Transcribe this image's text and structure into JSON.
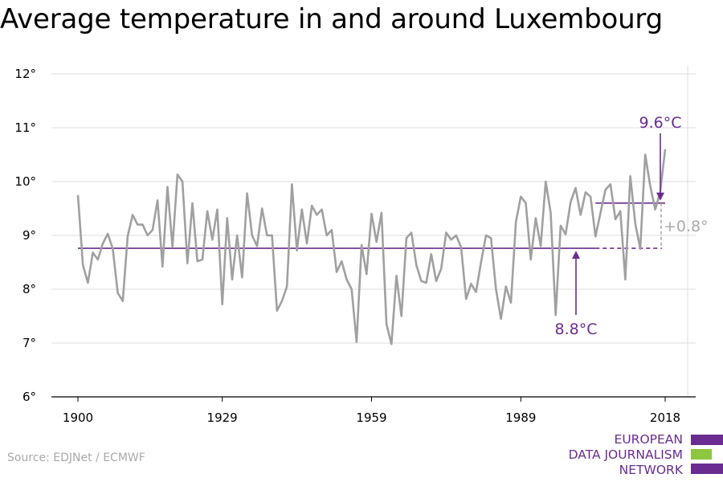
{
  "title": "Average temperature in and around Luxembourg",
  "source": "Source: EDJNet / ECMWF",
  "logo": {
    "line1": "EUROPEAN",
    "line2": "DATA JOURNALISM",
    "line3": "NETWORK"
  },
  "colors": {
    "line": "#a0a0a0",
    "accent": "#6a2c91",
    "accent_green": "#8dc63f",
    "grid": "#dddddd"
  },
  "chart_data": {
    "type": "line",
    "title": "Average temperature in and around Luxembourg",
    "xlabel": "",
    "ylabel": "",
    "xlim": [
      1900,
      2018
    ],
    "ylim": [
      6,
      12
    ],
    "x_ticks": [
      1900,
      1929,
      1959,
      1989,
      2018
    ],
    "x_tick_labels": [
      "1900",
      "1929",
      "1959",
      "1989",
      "2018"
    ],
    "y_ticks": [
      6,
      7,
      8,
      9,
      10,
      11,
      12
    ],
    "y_tick_labels": [
      "6°",
      "7°",
      "8°",
      "9°",
      "10°",
      "11°",
      "12°"
    ],
    "grid": "horizontal",
    "series": [
      {
        "x": [
          1900,
          1901,
          1902,
          1903,
          1904,
          1905,
          1906,
          1907,
          1908,
          1909,
          1910,
          1911,
          1912,
          1913,
          1914,
          1915,
          1916,
          1917,
          1918,
          1919,
          1920,
          1921,
          1922,
          1923,
          1924,
          1925,
          1926,
          1927,
          1928,
          1929,
          1930,
          1931,
          1932,
          1933,
          1934,
          1935,
          1936,
          1937,
          1938,
          1939,
          1940,
          1941,
          1942,
          1943,
          1944,
          1945,
          1946,
          1947,
          1948,
          1949,
          1950,
          1951,
          1952,
          1953,
          1954,
          1955,
          1956,
          1957,
          1958,
          1959,
          1960,
          1961,
          1962,
          1963,
          1964,
          1965,
          1966,
          1967,
          1968,
          1969,
          1970,
          1971,
          1972,
          1973,
          1974,
          1975,
          1976,
          1977,
          1978,
          1979,
          1980,
          1981,
          1982,
          1983,
          1984,
          1985,
          1986,
          1987,
          1988,
          1989,
          1990,
          1991,
          1992,
          1993,
          1994,
          1995,
          1996,
          1997,
          1998,
          1999,
          2000,
          2001,
          2002,
          2003,
          2004,
          2005,
          2006,
          2007,
          2008,
          2009,
          2010,
          2011,
          2012,
          2013,
          2014,
          2015,
          2016,
          2017,
          2018
        ],
        "values": [
          9.75,
          8.45,
          8.12,
          8.68,
          8.55,
          8.85,
          9.03,
          8.75,
          7.93,
          7.78,
          8.98,
          9.38,
          9.2,
          9.2,
          9.0,
          9.1,
          9.65,
          8.42,
          9.9,
          8.78,
          10.13,
          10.0,
          8.48,
          9.6,
          8.52,
          8.55,
          9.45,
          8.92,
          9.48,
          7.72,
          9.32,
          8.18,
          9.0,
          8.22,
          9.78,
          9.0,
          8.8,
          9.5,
          9.0,
          9.0,
          7.6,
          7.78,
          8.05,
          9.95,
          8.72,
          9.48,
          8.85,
          9.55,
          9.38,
          9.48,
          9.0,
          9.1,
          8.32,
          8.52,
          8.18,
          8.0,
          7.02,
          8.82,
          8.28,
          9.4,
          8.88,
          9.42,
          7.35,
          6.98,
          8.25,
          7.5,
          8.95,
          9.05,
          8.45,
          8.15,
          8.12,
          8.65,
          8.15,
          8.38,
          9.05,
          8.92,
          9.0,
          8.78,
          7.82,
          8.1,
          7.95,
          8.5,
          9.0,
          8.95,
          8.0,
          7.45,
          8.05,
          7.75,
          9.25,
          9.72,
          9.6,
          8.55,
          9.32,
          8.8,
          10.0,
          9.42,
          7.52,
          9.18,
          9.02,
          9.62,
          9.88,
          9.38,
          9.8,
          9.72,
          8.98,
          9.42,
          9.85,
          9.95,
          9.3,
          9.45,
          8.18,
          10.1,
          9.22,
          8.75,
          10.5,
          9.92,
          9.48,
          9.8,
          10.6
        ]
      }
    ],
    "reference_lines": [
      {
        "label": "8.8°C",
        "value": 8.76,
        "from": 1900,
        "to": 2018
      },
      {
        "label": "9.6°C",
        "value": 9.6,
        "from": 2004,
        "to": 2018
      }
    ],
    "difference_label": "+0.8°"
  }
}
